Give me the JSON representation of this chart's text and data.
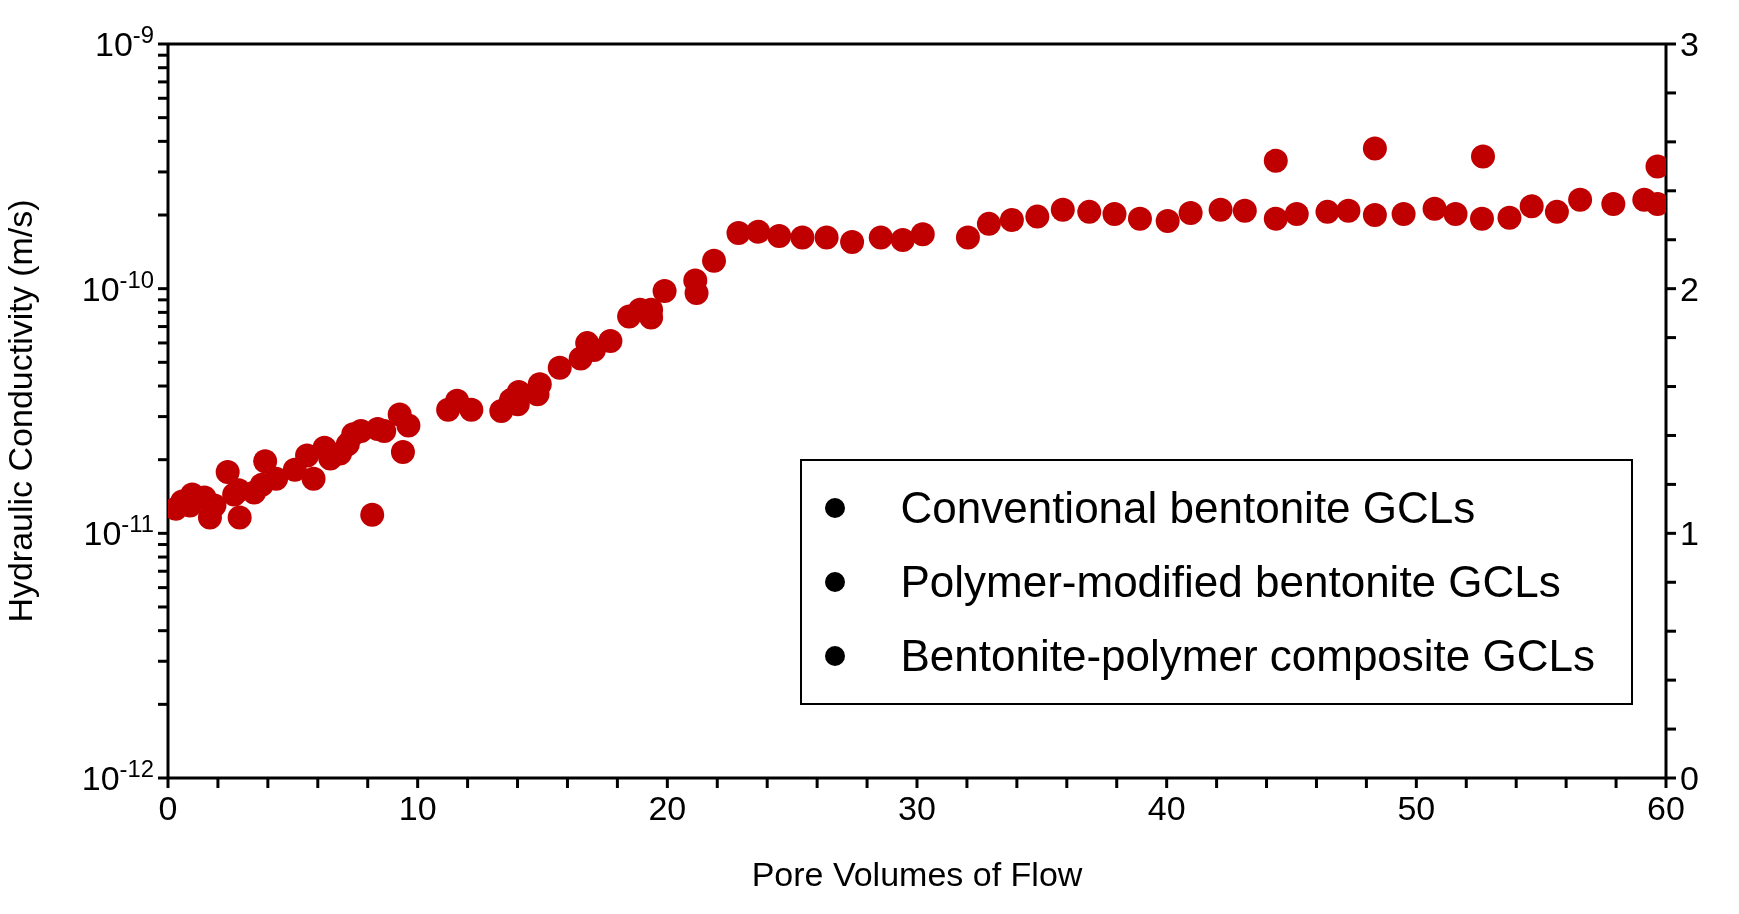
{
  "chart_data": {
    "type": "scatter",
    "xlabel": "Pore Volumes of Flow",
    "ylabel": "Hydraulic Conductivity (m/s)",
    "log": "y",
    "marker": "circle",
    "legend": "bottom right",
    "grid": false,
    "xlim": [
      0,
      60
    ],
    "xticks": [
      0,
      {
        "value": 2,
        "label": null
      },
      {
        "value": 4,
        "label": null
      },
      {
        "value": 6,
        "label": null
      },
      {
        "value": 8,
        "label": null
      },
      10,
      {
        "value": 12,
        "label": null
      },
      {
        "value": 14,
        "label": null
      },
      {
        "value": 16,
        "label": null
      },
      {
        "value": 18,
        "label": null
      },
      20,
      {
        "value": 22,
        "label": null
      },
      {
        "value": 24,
        "label": null
      },
      {
        "value": 26,
        "label": null
      },
      {
        "value": 28,
        "label": null
      },
      30,
      {
        "value": 32,
        "label": null
      },
      {
        "value": 34,
        "label": null
      },
      {
        "value": 36,
        "label": null
      },
      {
        "value": 38,
        "label": null
      },
      40,
      {
        "value": 42,
        "label": null
      },
      {
        "value": 44,
        "label": null
      },
      {
        "value": 46,
        "label": null
      },
      {
        "value": 48,
        "label": null
      },
      50,
      {
        "value": 52,
        "label": null
      },
      {
        "value": 54,
        "label": null
      },
      {
        "value": 56,
        "label": null
      },
      {
        "value": 58,
        "label": null
      },
      60
    ],
    "ylim": [
      1e-12,
      1e-09
    ],
    "yticks": [
      {
        "value": 1e-12,
        "label": "10$^{-12}$"
      },
      {
        "value": 2e-12,
        "label": null
      },
      {
        "value": 3e-12,
        "label": null
      },
      {
        "value": 4e-12,
        "label": null
      },
      {
        "value": 5e-12,
        "label": null
      },
      {
        "value": 6e-12,
        "label": null
      },
      {
        "value": 7e-12,
        "label": null
      },
      {
        "value": 8e-12,
        "label": null
      },
      {
        "value": 9e-12,
        "label": null
      },
      {
        "value": 1e-11,
        "label": "10$^{-11}$"
      },
      {
        "value": 2e-11,
        "label": null
      },
      {
        "value": 3e-11,
        "label": null
      },
      {
        "value": 4e-11,
        "label": null
      },
      {
        "value": 5e-11,
        "label": null
      },
      {
        "value": 6e-11,
        "label": null
      },
      {
        "value": 7e-11,
        "label": null
      },
      {
        "value": 8e-11,
        "label": null
      },
      {
        "value": 9e-11,
        "label": null
      },
      {
        "value": 1e-10,
        "label": "10$^{-10}$"
      },
      {
        "value": 2e-10,
        "label": null
      },
      {
        "value": 3e-10,
        "label": null
      },
      {
        "value": 4e-10,
        "label": null
      },
      {
        "value": 5e-10,
        "label": null
      },
      {
        "value": 6e-10,
        "label": null
      },
      {
        "value": 7e-10,
        "label": null
      },
      {
        "value": 8e-10,
        "label": null
      },
      {
        "value": 9e-10,
        "label": null
      },
      {
        "value": 1e-09,
        "label": "10$^{-9}$"
      }
    ],
    "y2lim": [
      0,
      3
    ],
    "y2ticks": [
      0,
      {
        "value": 0.2,
        "label": null
      },
      {
        "value": 0.4,
        "label": null
      },
      {
        "value": 0.6,
        "label": null
      },
      {
        "value": 0.8,
        "label": null
      },
      1,
      {
        "value": 1.2,
        "label": null
      },
      {
        "value": 1.4,
        "label": null
      },
      {
        "value": 1.6,
        "label": null
      },
      {
        "value": 1.8,
        "label": null
      },
      2,
      {
        "value": 2.2,
        "label": null
      },
      {
        "value": 2.4,
        "label": null
      },
      {
        "value": 2.6,
        "label": null
      },
      {
        "value": 2.8,
        "label": null
      },
      3
    ],
    "series": [
      {
        "color": "#c00000",
        "x": [
          0.31,
          0.57,
          0.97,
          0.88,
          1.46,
          1.68,
          1.86,
          2.39,
          2.65,
          2.87,
          2.83,
          3.45,
          3.76,
          3.89,
          4.33,
          5.08,
          5.57,
          5.83,
          6.27,
          6.5,
          6.89,
          7.2,
          7.42,
          7.73,
          8.18,
          8.4,
          8.66,
          9.28,
          9.41,
          9.63,
          11.22,
          11.58,
          12.15,
          13.35,
          13.74,
          14.01,
          14.05,
          14.8,
          14.89,
          15.69,
          16.53,
          16.79,
          17.06,
          17.72,
          18.47,
          18.91,
          19.35,
          19.35,
          19.89,
          21.12,
          21.17,
          21.87,
          22.85,
          23.64,
          24.48,
          25.41,
          26.38,
          27.4,
          28.55,
          29.43,
          30.23,
          32.04,
          32.88,
          33.8,
          34.82,
          35.84,
          36.9,
          37.91,
          38.93,
          40.04,
          40.96,
          42.16,
          43.13,
          44.37,
          44.37,
          45.21,
          46.44,
          47.28,
          48.34,
          48.34,
          49.49,
          50.73,
          51.57,
          52.63,
          52.67,
          53.73,
          54.62,
          55.63,
          56.56,
          57.89,
          59.13,
          59.66,
          59.66
        ],
        "values": [
          1.26e-11,
          1.35e-11,
          1.44e-11,
          1.3e-11,
          1.4e-11,
          1.16e-11,
          1.3e-11,
          1.78e-11,
          1.44e-11,
          1.16e-11,
          1.5e-11,
          1.47e-11,
          1.58e-11,
          1.97e-11,
          1.67e-11,
          1.82e-11,
          2.08e-11,
          1.67e-11,
          2.24e-11,
          2.02e-11,
          2.12e-11,
          2.31e-11,
          2.54e-11,
          2.62e-11,
          1.19e-11,
          2.67e-11,
          2.62e-11,
          3.06e-11,
          2.15e-11,
          2.76e-11,
          3.2e-11,
          3.48e-11,
          3.2e-11,
          3.16e-11,
          3.51e-11,
          3.37e-11,
          3.78e-11,
          3.7e-11,
          4.07e-11,
          4.75e-11,
          5.18e-11,
          5.99e-11,
          5.62e-11,
          6.11e-11,
          7.69e-11,
          8.2e-11,
          8.2e-11,
          7.62e-11,
          9.79e-11,
          1.08e-10,
          9.59e-11,
          1.3e-10,
          1.69e-10,
          1.71e-10,
          1.64e-10,
          1.62e-10,
          1.62e-10,
          1.55e-10,
          1.62e-10,
          1.58e-10,
          1.67e-10,
          1.62e-10,
          1.84e-10,
          1.91e-10,
          1.97e-10,
          2.1e-10,
          2.06e-10,
          2.02e-10,
          1.93e-10,
          1.89e-10,
          2.04e-10,
          2.1e-10,
          2.08e-10,
          1.93e-10,
          3.33e-10,
          2.02e-10,
          2.06e-10,
          2.08e-10,
          2e-10,
          3.74e-10,
          2.02e-10,
          2.12e-10,
          2.02e-10,
          1.93e-10,
          3.47e-10,
          1.95e-10,
          2.17e-10,
          2.06e-10,
          2.31e-10,
          2.22e-10,
          2.31e-10,
          2.22e-10,
          3.16e-10
        ]
      },
      {
        "name": "Conventional bentonite GCLs",
        "color": "#000000"
      },
      {
        "name": "Polymer-modified bentonite GCLs",
        "color": "#000000"
      },
      {
        "name": "Bentonite-polymer composite GCLs",
        "color": "#000000"
      }
    ]
  }
}
